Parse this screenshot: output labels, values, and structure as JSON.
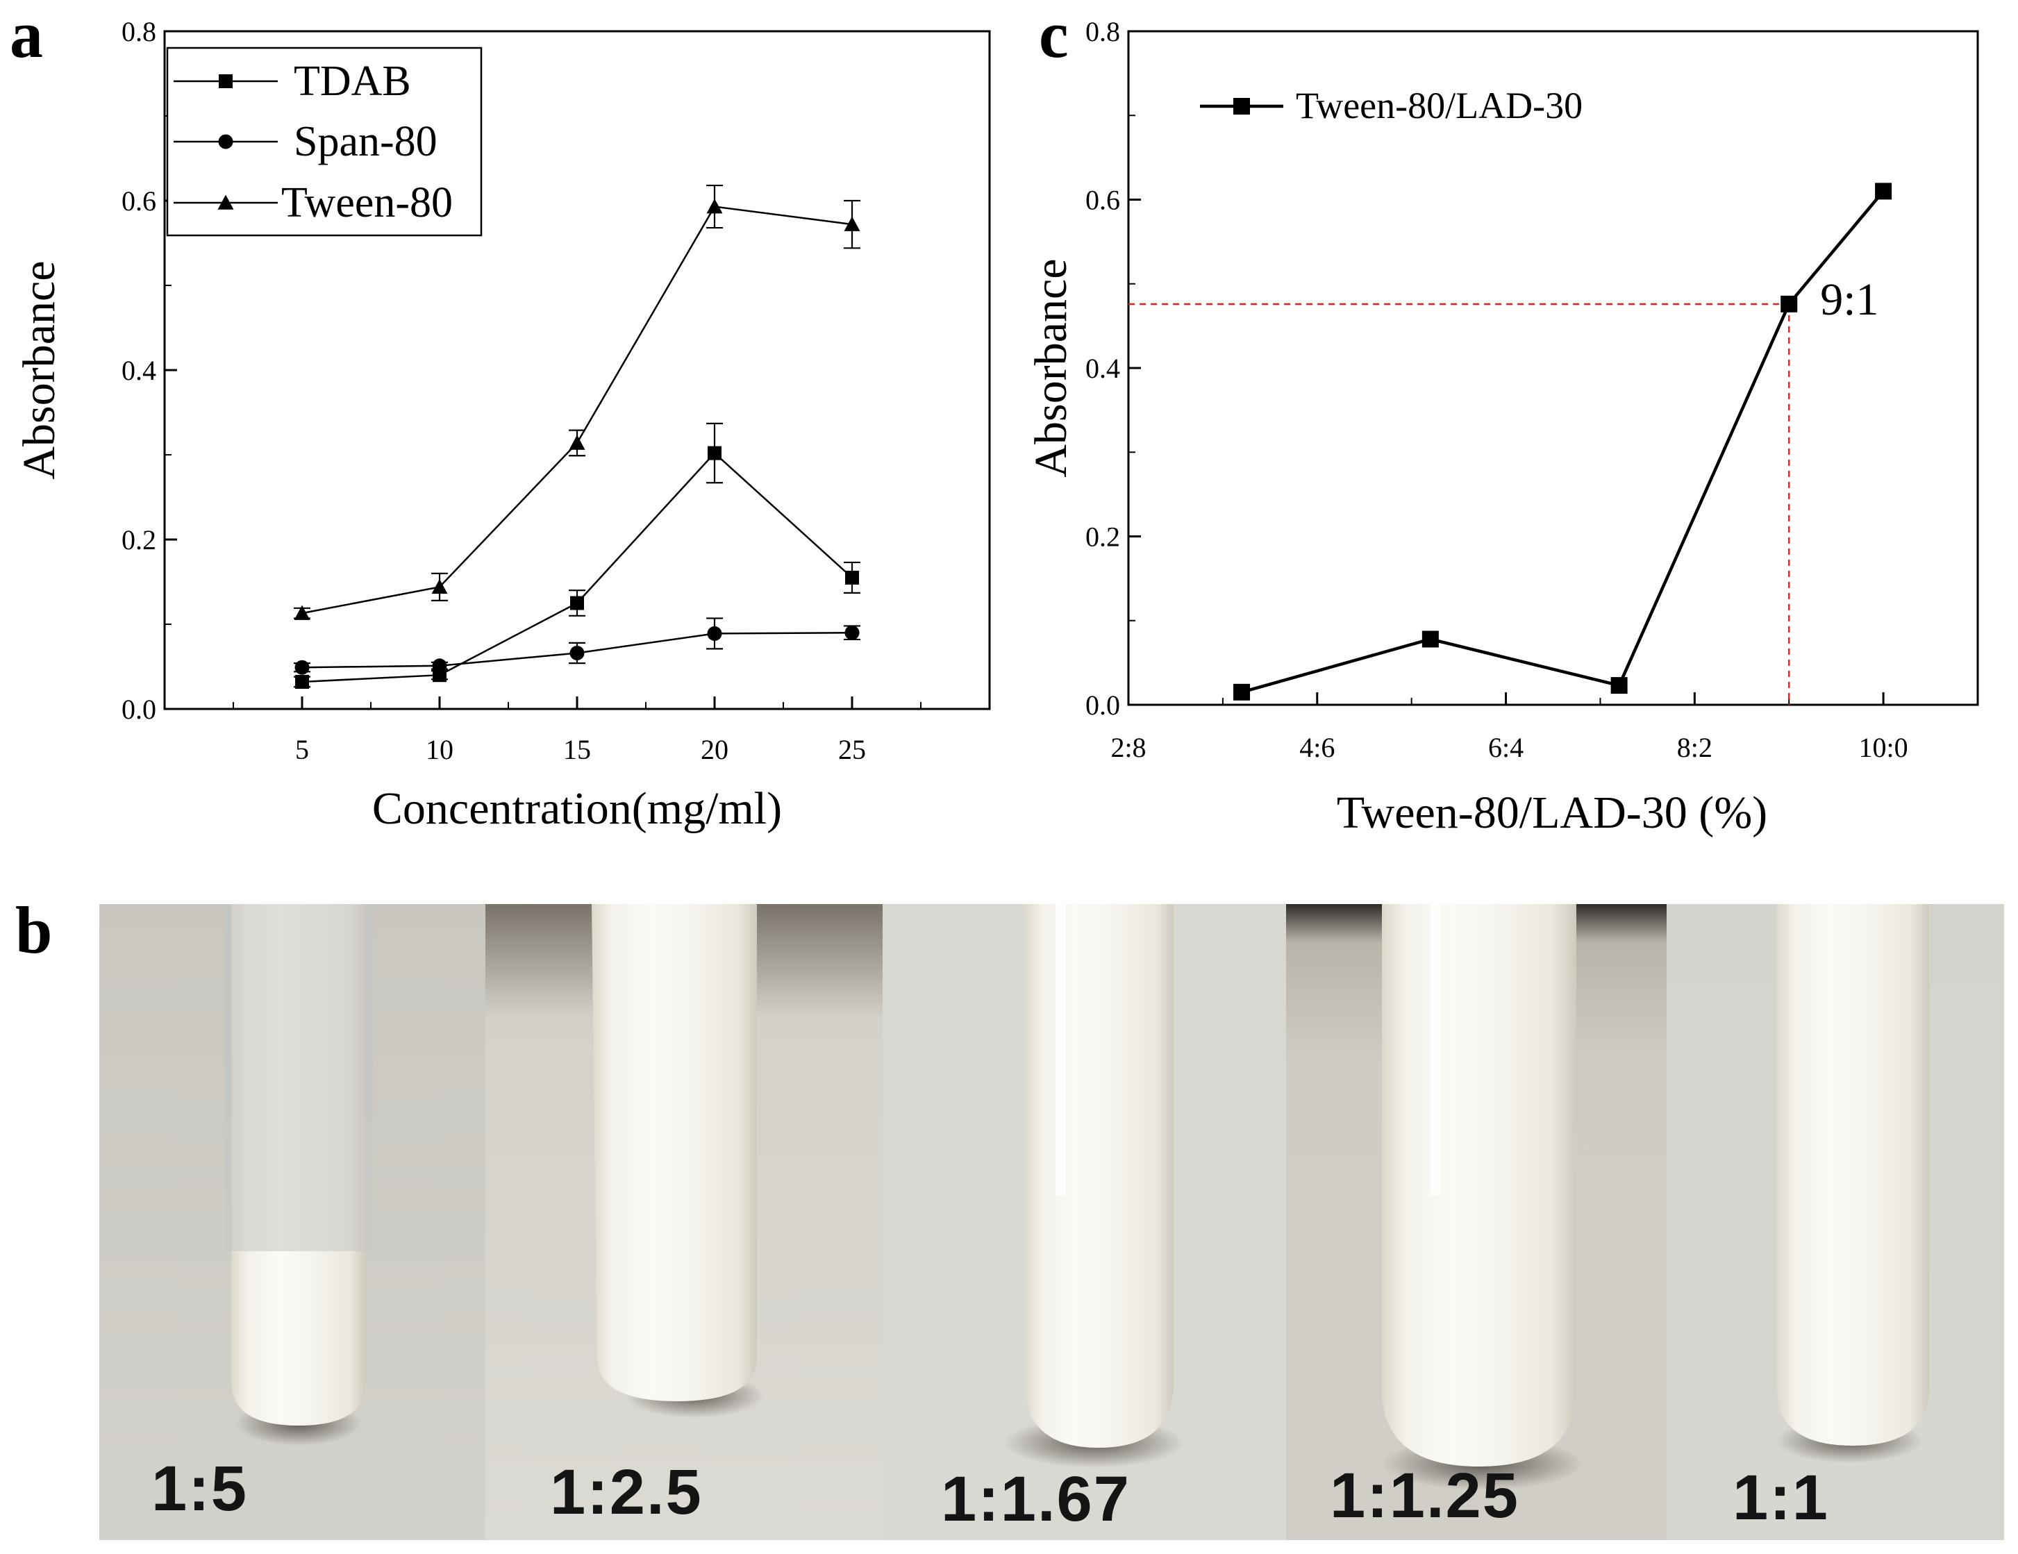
{
  "panels": {
    "a": "a",
    "b": "b",
    "c": "c"
  },
  "chart_data": [
    {
      "id": "a",
      "type": "line",
      "x": [
        5,
        10,
        15,
        20,
        25
      ],
      "xlabel": "Concentration(mg/ml)",
      "ylabel": "Absorbance",
      "xlim": [
        0,
        30
      ],
      "ylim": [
        0,
        0.8
      ],
      "xticks": [
        "5",
        "10",
        "15",
        "20",
        "25"
      ],
      "yticks": [
        "0.0",
        "0.2",
        "0.4",
        "0.6",
        "0.8"
      ],
      "legend_position": "top-left",
      "series": [
        {
          "name": "TDAB",
          "marker": "square",
          "values": [
            0.032,
            0.04,
            0.125,
            0.302,
            0.155
          ],
          "errors": [
            0.006,
            0.005,
            0.015,
            0.035,
            0.018
          ]
        },
        {
          "name": "Span-80",
          "marker": "circle",
          "values": [
            0.049,
            0.051,
            0.066,
            0.089,
            0.09
          ],
          "errors": [
            0.005,
            0.004,
            0.012,
            0.018,
            0.008
          ]
        },
        {
          "name": "Tween-80",
          "marker": "triangle",
          "values": [
            0.113,
            0.144,
            0.314,
            0.593,
            0.572
          ],
          "errors": [
            0.006,
            0.016,
            0.015,
            0.025,
            0.028
          ]
        }
      ]
    },
    {
      "id": "c",
      "type": "line",
      "categories": [
        "2:8",
        "4:6",
        "6:4",
        "8:2",
        "10:0"
      ],
      "category_positions": [
        2,
        4,
        6,
        8,
        10
      ],
      "xlim": [
        2,
        11
      ],
      "ylim": [
        0,
        0.8
      ],
      "xlabel": "Tween-80/LAD-30 (%)",
      "ylabel": "Absorbance",
      "yticks": [
        "0.0",
        "0.2",
        "0.4",
        "0.6",
        "0.8"
      ],
      "legend_position": "top-left",
      "series": [
        {
          "name": "Tween-80/LAD-30",
          "marker": "square",
          "x": [
            3.2,
            5.2,
            7.2,
            9.0,
            10.0
          ],
          "values": [
            0.015,
            0.078,
            0.023,
            0.476,
            0.61
          ]
        }
      ],
      "annotation": {
        "text": "9:1",
        "x": 9.0,
        "y": 0.476,
        "color": "#e0281e"
      }
    }
  ],
  "photo_panel": {
    "labels": [
      "1:5",
      "1:2.5",
      "1:1.67",
      "1:1.25",
      "1:1"
    ]
  }
}
